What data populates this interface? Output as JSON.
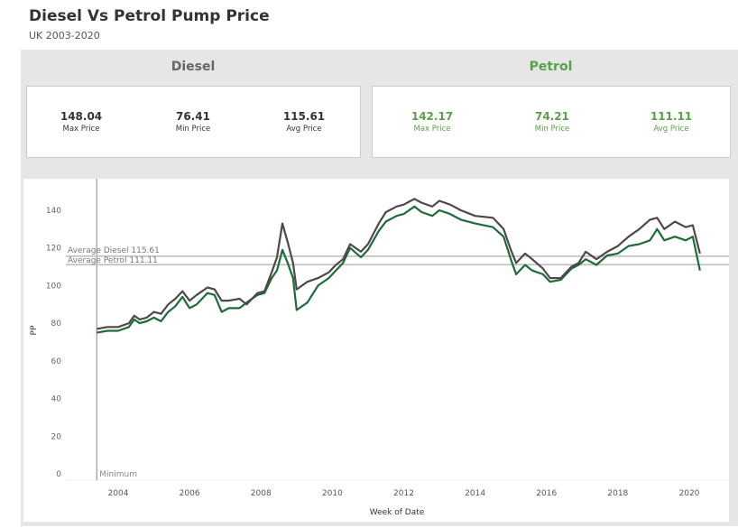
{
  "header": {
    "title": "Diesel Vs Petrol Pump Price",
    "subtitle": "UK 2003-2020"
  },
  "colors": {
    "diesel": "#4f4848",
    "petrol": "#1e6b3a",
    "petrol_text": "#5aa04a",
    "diesel_text": "#555555"
  },
  "diesel": {
    "label": "Diesel",
    "stats": [
      {
        "value": "148.04",
        "label": "Max Price"
      },
      {
        "value": "76.41",
        "label": "Min Price"
      },
      {
        "value": "115.61",
        "label": "Avg Price"
      }
    ]
  },
  "petrol": {
    "label": "Petrol",
    "stats": [
      {
        "value": "142.17",
        "label": "Max Price"
      },
      {
        "value": "74.21",
        "label": "Min Price"
      },
      {
        "value": "111.11",
        "label": "Avg Price"
      }
    ]
  },
  "chart_data": {
    "type": "line",
    "xlabel": "Week of Date",
    "ylabel": "PP",
    "xlim": [
      2002.5,
      2020.9
    ],
    "ylim": [
      0,
      152
    ],
    "xticks": [
      "2004",
      "2006",
      "2008",
      "2010",
      "2012",
      "2014",
      "2016",
      "2018",
      "2020"
    ],
    "yticks": [
      "0",
      "20",
      "40",
      "60",
      "80",
      "100",
      "120",
      "140"
    ],
    "reference_lines": [
      {
        "label": "Average Diesel 115.61",
        "value": 115.61
      },
      {
        "label": "Average Petrol 111.11",
        "value": 111.11
      }
    ],
    "vertical_reference": {
      "label": "Minimum",
      "x": 2003.4
    },
    "series": [
      {
        "name": "Diesel",
        "x": [
          2003.4,
          2003.7,
          2004.0,
          2004.3,
          2004.45,
          2004.6,
          2004.8,
          2005.0,
          2005.2,
          2005.4,
          2005.6,
          2005.8,
          2006.0,
          2006.2,
          2006.5,
          2006.7,
          2006.9,
          2007.1,
          2007.4,
          2007.6,
          2007.9,
          2008.1,
          2008.3,
          2008.45,
          2008.6,
          2008.75,
          2008.9,
          2009.0,
          2009.3,
          2009.6,
          2009.9,
          2010.1,
          2010.3,
          2010.5,
          2010.8,
          2011.0,
          2011.3,
          2011.5,
          2011.8,
          2012.0,
          2012.3,
          2012.5,
          2012.8,
          2013.0,
          2013.3,
          2013.6,
          2014.0,
          2014.5,
          2014.8,
          2015.0,
          2015.15,
          2015.4,
          2015.6,
          2015.9,
          2016.1,
          2016.4,
          2016.7,
          2016.9,
          2017.1,
          2017.4,
          2017.7,
          2018.0,
          2018.3,
          2018.6,
          2018.9,
          2019.1,
          2019.3,
          2019.6,
          2019.9,
          2020.1,
          2020.3
        ],
        "values": [
          77,
          78,
          78,
          80,
          84,
          82,
          83,
          86,
          85,
          90,
          93,
          97,
          92,
          95,
          99,
          98,
          92,
          92,
          93,
          90,
          96,
          97,
          107,
          115,
          133,
          123,
          112,
          98,
          102,
          104,
          107,
          111,
          114,
          122,
          118,
          122,
          133,
          139,
          142,
          143,
          146,
          144,
          142,
          145,
          143,
          140,
          137,
          136,
          130,
          119,
          112,
          117,
          114,
          109,
          104,
          104,
          110,
          112,
          118,
          114,
          118,
          121,
          126,
          130,
          135,
          136,
          130,
          134,
          131,
          132,
          117
        ]
      },
      {
        "name": "Petrol",
        "x": [
          2003.4,
          2003.7,
          2004.0,
          2004.3,
          2004.45,
          2004.6,
          2004.8,
          2005.0,
          2005.2,
          2005.4,
          2005.6,
          2005.8,
          2006.0,
          2006.2,
          2006.5,
          2006.7,
          2006.9,
          2007.1,
          2007.4,
          2007.6,
          2007.9,
          2008.1,
          2008.3,
          2008.45,
          2008.6,
          2008.75,
          2008.9,
          2009.0,
          2009.3,
          2009.6,
          2009.9,
          2010.1,
          2010.3,
          2010.5,
          2010.8,
          2011.0,
          2011.3,
          2011.5,
          2011.8,
          2012.0,
          2012.3,
          2012.5,
          2012.8,
          2013.0,
          2013.3,
          2013.6,
          2014.0,
          2014.5,
          2014.8,
          2015.0,
          2015.15,
          2015.4,
          2015.6,
          2015.9,
          2016.1,
          2016.4,
          2016.7,
          2016.9,
          2017.1,
          2017.4,
          2017.7,
          2018.0,
          2018.3,
          2018.6,
          2018.9,
          2019.1,
          2019.3,
          2019.6,
          2019.9,
          2020.1,
          2020.3
        ],
        "values": [
          75,
          76,
          76,
          78,
          82,
          80,
          81,
          83,
          81,
          86,
          89,
          94,
          88,
          90,
          96,
          95,
          86,
          88,
          88,
          91,
          95,
          96,
          104,
          108,
          119,
          112,
          104,
          87,
          91,
          100,
          104,
          108,
          112,
          120,
          115,
          119,
          129,
          134,
          137,
          138,
          142,
          139,
          137,
          140,
          138,
          135,
          133,
          131,
          126,
          114,
          106,
          111,
          108,
          106,
          102,
          103,
          109,
          111,
          114,
          111,
          116,
          117,
          121,
          122,
          124,
          130,
          124,
          126,
          124,
          126,
          108
        ]
      }
    ]
  }
}
